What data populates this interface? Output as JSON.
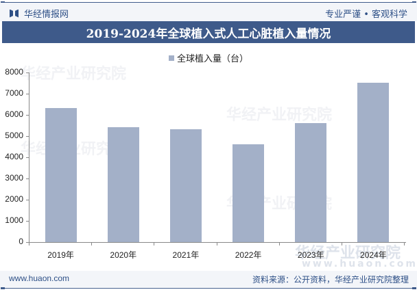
{
  "header": {
    "brand": "华经情报网",
    "slogan": "专业严谨 • 客观科学"
  },
  "title": "2019-2024年全球植入式人工心脏植入量情况",
  "legend": {
    "label": "全球植入量（台）",
    "color": "#a3b0c8"
  },
  "footer": {
    "url": "www.huaon.com",
    "source": "资料来源：公开资料，华经产业研究院整理"
  },
  "watermark": {
    "text": "华经产业研究院",
    "url": "www.huaon.com"
  },
  "chart_data": {
    "type": "bar",
    "title": "2019-2024年全球植入式人工心脏植入量情况",
    "categories": [
      "2019年",
      "2020年",
      "2021年",
      "2022年",
      "2023年",
      "2024年"
    ],
    "series": [
      {
        "name": "全球植入量（台）",
        "values": [
          6320,
          5420,
          5320,
          4610,
          5610,
          7520
        ],
        "color": "#a3b0c8"
      }
    ],
    "xlabel": "",
    "ylabel": "",
    "ylim": [
      0,
      8000
    ],
    "yticks": [
      0,
      1000,
      2000,
      3000,
      4000,
      5000,
      6000,
      7000,
      8000
    ],
    "grid": false,
    "legend_position": "top"
  }
}
